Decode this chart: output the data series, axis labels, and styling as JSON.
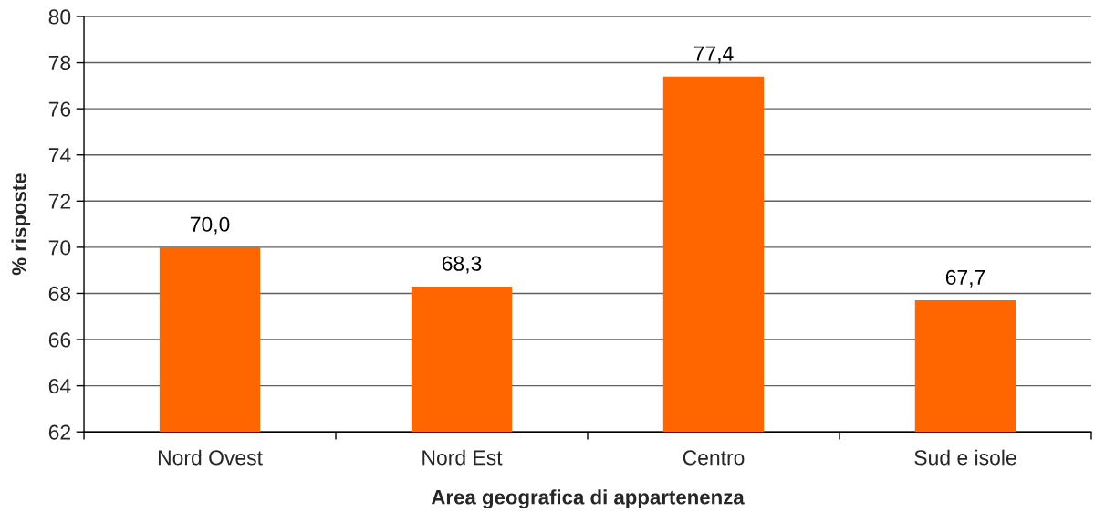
{
  "chart_data": {
    "type": "bar",
    "xlabel": "Area geografica di appartenenza",
    "ylabel": "% risposte",
    "categories": [
      "Nord Ovest",
      "Nord Est",
      "Centro",
      "Sud e isole"
    ],
    "values": [
      70.0,
      68.3,
      77.4,
      67.7
    ],
    "value_labels": [
      "70,0",
      "68,3",
      "77,4",
      "67,7"
    ],
    "color": "#ff6600",
    "ylim": [
      62,
      80
    ],
    "yticks": [
      62,
      64,
      66,
      68,
      70,
      72,
      74,
      76,
      78,
      80
    ],
    "grid": "y"
  }
}
